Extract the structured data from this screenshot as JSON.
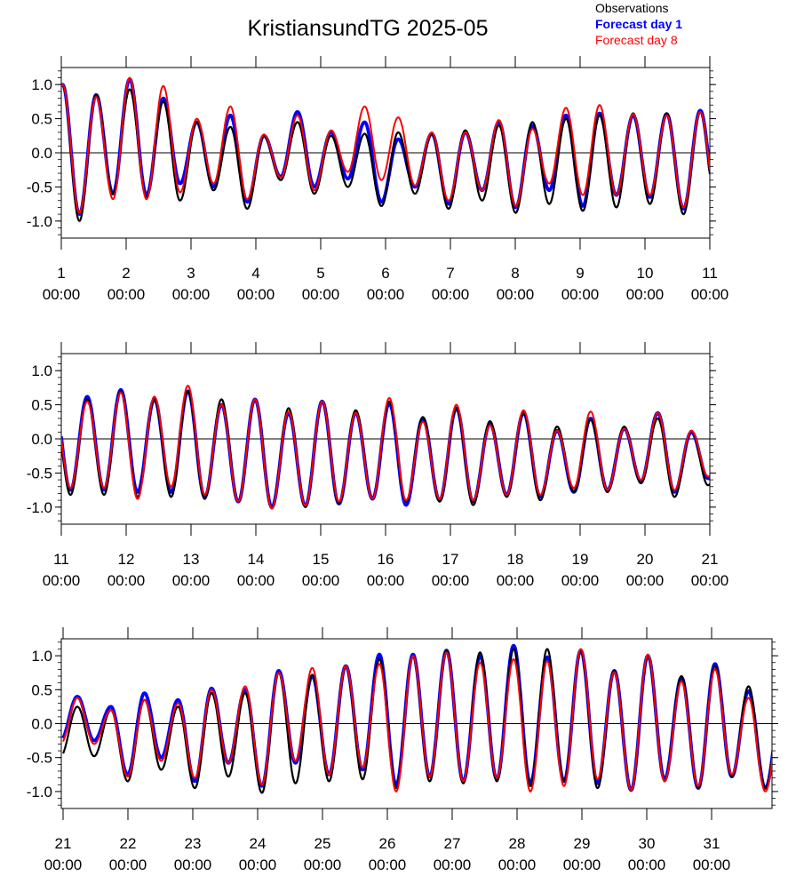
{
  "chart_data": {
    "type": "line",
    "title": "KristiansundTG 2025-05",
    "legend": {
      "placement": "top-right",
      "entries": [
        {
          "name": "Observations",
          "color": "#000000"
        },
        {
          "name": "Forecast day 1",
          "color": "#0000ff"
        },
        {
          "name": "Forecast day 8",
          "color": "#ff0000"
        }
      ]
    },
    "series_colors": {
      "observations": "#000000",
      "forecast_day_1": "#0000ff",
      "forecast_day_8": "#ff0000"
    },
    "y_ticks": [
      "1.0",
      "0.5",
      "0.0",
      "-0.5",
      "-1.0"
    ],
    "ylim": [
      -1.25,
      1.25
    ],
    "tide_period_hours": 12.42,
    "grid": "zero line only",
    "panels": [
      {
        "x_range_days": [
          1,
          11
        ],
        "x_ticks": [
          {
            "day": "1",
            "time": "00:00"
          },
          {
            "day": "2",
            "time": "00:00"
          },
          {
            "day": "3",
            "time": "00:00"
          },
          {
            "day": "4",
            "time": "00:00"
          },
          {
            "day": "5",
            "time": "00:00"
          },
          {
            "day": "6",
            "time": "00:00"
          },
          {
            "day": "7",
            "time": "00:00"
          },
          {
            "day": "8",
            "time": "00:00"
          },
          {
            "day": "9",
            "time": "00:00"
          },
          {
            "day": "10",
            "time": "00:00"
          },
          {
            "day": "11",
            "time": "00:00"
          }
        ],
        "high_tides": [
          {
            "obs": [
              1.0,
              0.85,
              0.93,
              0.75,
              0.45,
              0.38,
              0.25,
              0.45,
              0.25,
              0.28,
              0.3,
              0.28,
              0.33,
              0.4,
              0.45,
              0.5,
              0.55,
              0.58,
              0.58,
              0.6
            ],
            "f1": [
              1.0,
              0.85,
              1.08,
              0.8,
              0.45,
              0.55,
              0.25,
              0.6,
              0.3,
              0.45,
              0.2,
              0.28,
              0.3,
              0.45,
              0.4,
              0.55,
              0.58,
              0.55,
              0.57,
              0.62
            ],
            "f8": [
              1.0,
              0.82,
              1.1,
              0.98,
              0.5,
              0.68,
              0.27,
              0.55,
              0.33,
              0.68,
              0.52,
              0.3,
              0.3,
              0.48,
              0.35,
              0.66,
              0.7,
              0.57,
              0.55,
              0.6
            ]
          }
        ],
        "low_tides": [
          {
            "obs": [
              -1.0,
              -0.6,
              -0.65,
              -0.7,
              -0.55,
              -0.82,
              -0.4,
              -0.6,
              -0.5,
              -0.78,
              -0.6,
              -0.82,
              -0.7,
              -0.88,
              -0.75,
              -0.85,
              -0.8,
              -0.75,
              -0.9,
              -0.9
            ],
            "f1": [
              -0.9,
              -0.6,
              -0.62,
              -0.45,
              -0.5,
              -0.72,
              -0.35,
              -0.5,
              -0.38,
              -0.72,
              -0.5,
              -0.75,
              -0.55,
              -0.8,
              -0.55,
              -0.78,
              -0.62,
              -0.65,
              -0.82,
              -0.82
            ],
            "f8": [
              -0.88,
              -0.68,
              -0.68,
              -0.58,
              -0.45,
              -0.68,
              -0.36,
              -0.55,
              -0.28,
              -0.4,
              -0.48,
              -0.7,
              -0.55,
              -0.78,
              -0.45,
              -0.62,
              -0.62,
              -0.62,
              -0.8,
              -0.8
            ]
          }
        ]
      },
      {
        "x_range_days": [
          11,
          21
        ],
        "x_ticks": [
          {
            "day": "11",
            "time": "00:00"
          },
          {
            "day": "12",
            "time": "00:00"
          },
          {
            "day": "13",
            "time": "00:00"
          },
          {
            "day": "14",
            "time": "00:00"
          },
          {
            "day": "15",
            "time": "00:00"
          },
          {
            "day": "16",
            "time": "00:00"
          },
          {
            "day": "17",
            "time": "00:00"
          },
          {
            "day": "18",
            "time": "00:00"
          },
          {
            "day": "19",
            "time": "00:00"
          },
          {
            "day": "20",
            "time": "00:00"
          },
          {
            "day": "21",
            "time": "00:00"
          }
        ],
        "high_tides": [
          {
            "obs": [
              0.58,
              0.7,
              0.58,
              0.7,
              0.58,
              0.58,
              0.45,
              0.55,
              0.42,
              0.55,
              0.32,
              0.45,
              0.26,
              0.38,
              0.18,
              0.28,
              0.18,
              0.3,
              0.12
            ],
            "f1": [
              0.62,
              0.72,
              0.58,
              0.7,
              0.5,
              0.58,
              0.38,
              0.55,
              0.38,
              0.52,
              0.3,
              0.45,
              0.22,
              0.38,
              0.12,
              0.3,
              0.15,
              0.38,
              0.1
            ],
            "f8": [
              0.55,
              0.68,
              0.62,
              0.78,
              0.5,
              0.58,
              0.4,
              0.55,
              0.38,
              0.6,
              0.25,
              0.5,
              0.2,
              0.42,
              0.12,
              0.4,
              0.15,
              0.38,
              0.12
            ]
          }
        ],
        "low_tides": [
          {
            "obs": [
              -0.82,
              -0.85,
              -0.85,
              -0.88,
              -0.92,
              -1.02,
              -1.0,
              -0.95,
              -0.88,
              -0.92,
              -0.92,
              -0.97,
              -0.85,
              -0.9,
              -0.78,
              -0.78,
              -0.65,
              -0.85,
              -0.68
            ],
            "f1": [
              -0.75,
              -0.78,
              -0.78,
              -0.85,
              -0.92,
              -1.0,
              -0.98,
              -0.95,
              -0.88,
              -0.97,
              -0.9,
              -0.92,
              -0.82,
              -0.85,
              -0.78,
              -0.75,
              -0.62,
              -0.78,
              -0.58
            ],
            "f8": [
              -0.72,
              -0.88,
              -0.7,
              -0.82,
              -0.92,
              -1.02,
              -0.98,
              -0.92,
              -0.88,
              -0.9,
              -0.88,
              -0.9,
              -0.82,
              -0.82,
              -0.72,
              -0.75,
              -0.6,
              -0.75,
              -0.55
            ]
          }
        ]
      },
      {
        "x_range_days": [
          21,
          32
        ],
        "x_ticks": [
          {
            "day": "21",
            "time": "00:00"
          },
          {
            "day": "22",
            "time": "00:00"
          },
          {
            "day": "23",
            "time": "00:00"
          },
          {
            "day": "24",
            "time": "00:00"
          },
          {
            "day": "25",
            "time": "00:00"
          },
          {
            "day": "26",
            "time": "00:00"
          },
          {
            "day": "27",
            "time": "00:00"
          },
          {
            "day": "28",
            "time": "00:00"
          },
          {
            "day": "29",
            "time": "00:00"
          },
          {
            "day": "30",
            "time": "00:00"
          },
          {
            "day": "31",
            "time": "00:00"
          }
        ],
        "high_tides": [
          {
            "obs": [
              0.25,
              0.2,
              0.35,
              0.25,
              0.45,
              0.45,
              0.75,
              0.72,
              0.85,
              0.95,
              1.0,
              1.08,
              1.05,
              1.1,
              1.1,
              1.08,
              0.78,
              1.0,
              0.7,
              0.85,
              0.55,
              0.3
            ],
            "f1": [
              0.4,
              0.25,
              0.45,
              0.35,
              0.52,
              0.5,
              0.78,
              0.7,
              0.85,
              1.02,
              1.02,
              1.08,
              1.0,
              1.15,
              0.98,
              1.08,
              0.78,
              1.0,
              0.68,
              0.88,
              0.48,
              0.3
            ],
            "f8": [
              0.38,
              0.2,
              0.35,
              0.3,
              0.5,
              0.55,
              0.75,
              0.82,
              0.85,
              0.88,
              1.0,
              1.05,
              0.9,
              0.95,
              0.92,
              1.1,
              0.76,
              1.02,
              0.62,
              0.8,
              0.38,
              0.28
            ]
          }
        ],
        "low_tides": [
          {
            "obs": [
              -0.48,
              -0.85,
              -0.68,
              -0.95,
              -0.78,
              -1.02,
              -0.88,
              -0.85,
              -0.82,
              -0.95,
              -0.85,
              -0.88,
              -0.85,
              -0.92,
              -0.85,
              -0.95,
              -0.98,
              -0.85,
              -0.95,
              -0.78,
              -0.95,
              -0.75
            ],
            "f1": [
              -0.25,
              -0.75,
              -0.5,
              -0.85,
              -0.58,
              -0.92,
              -0.58,
              -0.75,
              -0.68,
              -0.9,
              -0.78,
              -0.85,
              -0.82,
              -0.88,
              -0.85,
              -0.88,
              -0.98,
              -0.82,
              -0.95,
              -0.78,
              -0.95,
              -0.7
            ],
            "f8": [
              -0.3,
              -0.78,
              -0.55,
              -0.8,
              -0.58,
              -0.9,
              -0.55,
              -0.75,
              -0.65,
              -1.0,
              -0.78,
              -0.85,
              -0.8,
              -1.0,
              -0.92,
              -0.82,
              -0.98,
              -0.85,
              -0.92,
              -0.75,
              -1.0,
              -0.78
            ]
          }
        ]
      }
    ]
  }
}
